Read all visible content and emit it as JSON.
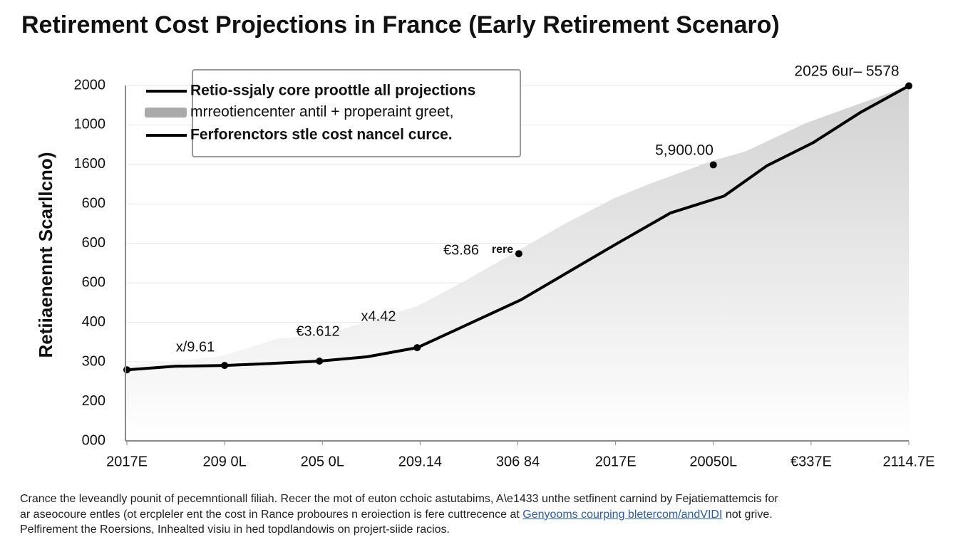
{
  "chart_data": {
    "type": "line",
    "title": "Retirement Cost Projections in France (Early Retirement Scenaro)",
    "y_label": "Retiiaenennt Scarllcno)",
    "xlim": [
      0,
      8
    ],
    "xticks": [
      {
        "value": 0,
        "label": "2017E"
      },
      {
        "value": 1,
        "label": "209 0L"
      },
      {
        "value": 2,
        "label": "205 0L"
      },
      {
        "value": 3,
        "label": "209.14"
      },
      {
        "value": 4,
        "label": "306 84"
      },
      {
        "value": 5,
        "label": "2017E"
      },
      {
        "value": 6,
        "label": "20050L"
      },
      {
        "value": 7,
        "label": "€337E"
      },
      {
        "value": 8,
        "label": "2114.7E"
      }
    ],
    "ylim": [
      0,
      9
    ],
    "yticks": [
      {
        "value": 0,
        "label": "000"
      },
      {
        "value": 1,
        "label": "200"
      },
      {
        "value": 2,
        "label": "300"
      },
      {
        "value": 3,
        "label": "400"
      },
      {
        "value": 4,
        "label": "600"
      },
      {
        "value": 5,
        "label": "600"
      },
      {
        "value": 6,
        "label": "600"
      },
      {
        "value": 7,
        "label": "1600"
      },
      {
        "value": 8,
        "label": "1000"
      },
      {
        "value": 9,
        "label": "2000"
      }
    ],
    "grid": true,
    "legend": "top-left",
    "series": [
      {
        "name": "mrreotiencenter antil + properaint greet,",
        "color": "#d0d0d0",
        "kind": "area",
        "x": [
          0,
          0.96,
          1.55,
          1.99,
          2.5,
          2.97,
          3.45,
          3.96,
          4.47,
          4.98,
          5.34,
          6.0,
          6.33,
          6.95,
          8.0
        ],
        "values": [
          1.91,
          2.14,
          2.59,
          2.68,
          3.05,
          3.41,
          4.04,
          4.76,
          5.48,
          6.14,
          6.5,
          7.1,
          7.33,
          8.05,
          8.99
        ]
      },
      {
        "name": "Retio-ssjaly core proottle all projections",
        "color": "#000000",
        "kind": "line",
        "x": [
          0,
          0.49,
          1.0,
          1.47,
          1.97,
          2.46,
          2.97,
          3.48,
          4.03,
          4.54,
          5.01,
          5.56,
          6.11,
          6.55,
          7.02,
          7.5,
          8.0
        ],
        "values": [
          1.8,
          1.89,
          1.91,
          1.96,
          2.02,
          2.13,
          2.36,
          2.94,
          3.57,
          4.31,
          4.99,
          5.77,
          6.2,
          6.97,
          7.55,
          8.31,
          8.99
        ]
      },
      {
        "name": "Ferforenctors stle cost nancel curce.",
        "color": "#000000",
        "kind": "points",
        "x": [
          0,
          1,
          1.97,
          2.97,
          4.01,
          6.0,
          8.0
        ],
        "values": [
          1.8,
          1.91,
          2.02,
          2.36,
          4.74,
          6.99,
          8.99
        ]
      }
    ],
    "annotations": [
      "x/9.61",
      "€3.612",
      "x4.42",
      "€3.86",
      "rere",
      "5,900.00",
      "2025 6ur– 5578"
    ]
  },
  "footnote": {
    "line1": "Crance the leveandly pounit of pecemntionall filiah. Recer the mot of euton cchoic astutabims, A\\e1433 unthe setfinent carnind by Fejatiemattemcis for",
    "line2_start": "ar aseocoure entles (ot ercpleler ent the cost in Rance proboures n eroiection is fere cuttrecence at ",
    "link": "Genyooms courping bletercom/andVIDI",
    "line2_end": " not grive.",
    "line3": "Pelfirement the Roersions, Inhealted visiu in hed topdlandowis on projert-siide racios."
  }
}
